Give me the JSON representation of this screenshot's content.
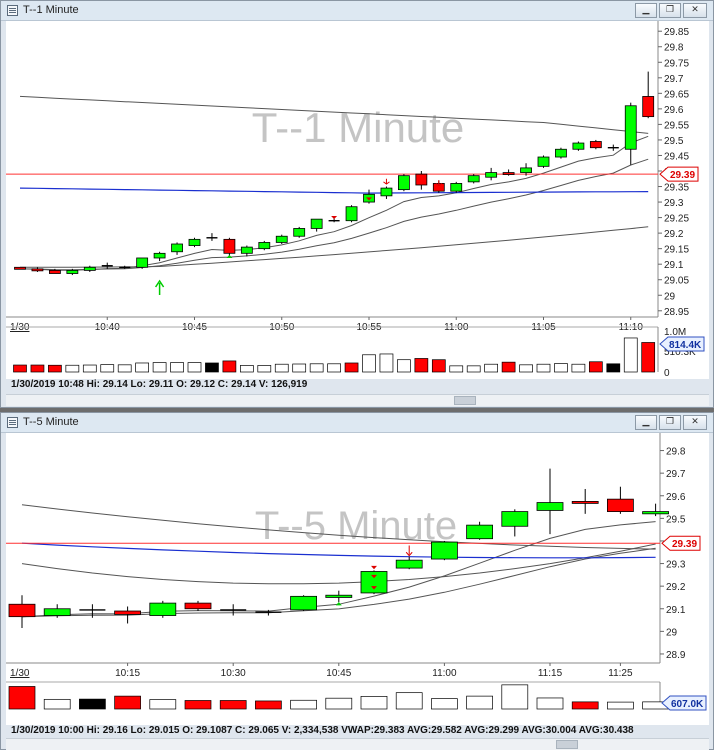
{
  "windows": [
    {
      "title": "T--1 Minute",
      "watermark": "T--1 Minute",
      "status": "1/30/2019 10:48  Hi: 29.14  Lo: 29.11  O: 29.12  C: 29.14  V: 126,919",
      "price_marker": "29.39",
      "volume_marker": "814.4K",
      "volume_ticks": [
        "1.0M",
        "510.3K",
        "0"
      ],
      "date_label": "1/30",
      "buttons": {
        "minimize": "▁",
        "restore": "❐",
        "close": "✕"
      }
    },
    {
      "title": "T--5 Minute",
      "watermark": "T--5 Minute",
      "status": "1/30/2019 10:00  Hi: 29.16  Lo: 29.015  O: 29.1087  C: 29.065  V: 2,334,538  VWAP:29.383  AVG:29.582  AVG:29.299  AVG:30.004  AVG:30.438",
      "price_marker": "29.39",
      "volume_marker": "607.0K",
      "date_label": "1/30",
      "buttons": {
        "minimize": "▁",
        "restore": "❐",
        "close": "✕"
      }
    }
  ],
  "chart_data": [
    {
      "type": "candlestick",
      "title": "T--1 Minute",
      "x_tick_labels": [
        "10:40",
        "10:45",
        "10:50",
        "10:55",
        "11:00",
        "11:05",
        "11:10"
      ],
      "y_ticks": [
        29.85,
        29.8,
        29.75,
        29.7,
        29.65,
        29.6,
        29.55,
        29.5,
        29.45,
        29.4,
        29.35,
        29.3,
        29.25,
        29.2,
        29.15,
        29.1,
        29.05,
        29.0,
        28.95
      ],
      "ylim": [
        28.93,
        29.87
      ],
      "reference_line": 29.39,
      "candles": [
        {
          "o": 29.09,
          "h": 29.09,
          "l": 29.085,
          "c": 29.085,
          "color": "red"
        },
        {
          "o": 29.085,
          "h": 29.09,
          "l": 29.075,
          "c": 29.08,
          "color": "red"
        },
        {
          "o": 29.08,
          "h": 29.085,
          "l": 29.07,
          "c": 29.07,
          "color": "red"
        },
        {
          "o": 29.07,
          "h": 29.085,
          "l": 29.065,
          "c": 29.08,
          "color": "green"
        },
        {
          "o": 29.08,
          "h": 29.095,
          "l": 29.075,
          "c": 29.09,
          "color": "green"
        },
        {
          "o": 29.09,
          "h": 29.105,
          "l": 29.085,
          "c": 29.095,
          "color": "doji"
        },
        {
          "o": 29.09,
          "h": 29.095,
          "l": 29.085,
          "c": 29.088,
          "color": "doji"
        },
        {
          "o": 29.09,
          "h": 29.12,
          "l": 29.085,
          "c": 29.12,
          "color": "green"
        },
        {
          "o": 29.12,
          "h": 29.14,
          "l": 29.11,
          "c": 29.135,
          "color": "green"
        },
        {
          "o": 29.14,
          "h": 29.17,
          "l": 29.13,
          "c": 29.165,
          "color": "green"
        },
        {
          "o": 29.16,
          "h": 29.185,
          "l": 29.155,
          "c": 29.18,
          "color": "green"
        },
        {
          "o": 29.185,
          "h": 29.2,
          "l": 29.175,
          "c": 29.185,
          "color": "doji"
        },
        {
          "o": 29.18,
          "h": 29.185,
          "l": 29.125,
          "c": 29.135,
          "color": "red"
        },
        {
          "o": 29.135,
          "h": 29.16,
          "l": 29.125,
          "c": 29.155,
          "color": "green"
        },
        {
          "o": 29.15,
          "h": 29.175,
          "l": 29.145,
          "c": 29.17,
          "color": "green"
        },
        {
          "o": 29.17,
          "h": 29.195,
          "l": 29.165,
          "c": 29.19,
          "color": "green"
        },
        {
          "o": 29.19,
          "h": 29.22,
          "l": 29.185,
          "c": 29.215,
          "color": "green"
        },
        {
          "o": 29.215,
          "h": 29.245,
          "l": 29.205,
          "c": 29.245,
          "color": "green"
        },
        {
          "o": 29.24,
          "h": 29.25,
          "l": 29.235,
          "c": 29.24,
          "color": "doji"
        },
        {
          "o": 29.24,
          "h": 29.29,
          "l": 29.235,
          "c": 29.285,
          "color": "green"
        },
        {
          "o": 29.3,
          "h": 29.34,
          "l": 29.295,
          "c": 29.325,
          "color": "green"
        },
        {
          "o": 29.32,
          "h": 29.35,
          "l": 29.31,
          "c": 29.345,
          "color": "green"
        },
        {
          "o": 29.34,
          "h": 29.39,
          "l": 29.335,
          "c": 29.385,
          "color": "green"
        },
        {
          "o": 29.39,
          "h": 29.4,
          "l": 29.34,
          "c": 29.355,
          "color": "red"
        },
        {
          "o": 29.36,
          "h": 29.37,
          "l": 29.33,
          "c": 29.335,
          "color": "red"
        },
        {
          "o": 29.335,
          "h": 29.365,
          "l": 29.33,
          "c": 29.36,
          "color": "green"
        },
        {
          "o": 29.365,
          "h": 29.39,
          "l": 29.36,
          "c": 29.385,
          "color": "green"
        },
        {
          "o": 29.38,
          "h": 29.41,
          "l": 29.37,
          "c": 29.395,
          "color": "green"
        },
        {
          "o": 29.395,
          "h": 29.405,
          "l": 29.385,
          "c": 29.39,
          "color": "red"
        },
        {
          "o": 29.395,
          "h": 29.425,
          "l": 29.385,
          "c": 29.41,
          "color": "green"
        },
        {
          "o": 29.415,
          "h": 29.45,
          "l": 29.41,
          "c": 29.445,
          "color": "green"
        },
        {
          "o": 29.445,
          "h": 29.475,
          "l": 29.44,
          "c": 29.47,
          "color": "green"
        },
        {
          "o": 29.47,
          "h": 29.495,
          "l": 29.465,
          "c": 29.49,
          "color": "green"
        },
        {
          "o": 29.495,
          "h": 29.5,
          "l": 29.47,
          "c": 29.475,
          "color": "red"
        },
        {
          "o": 29.475,
          "h": 29.485,
          "l": 29.465,
          "c": 29.475,
          "color": "doji"
        },
        {
          "o": 29.47,
          "h": 29.62,
          "l": 29.42,
          "c": 29.61,
          "color": "green"
        },
        {
          "o": 29.64,
          "h": 29.72,
          "l": 29.57,
          "c": 29.575,
          "color": "red"
        }
      ],
      "volume": {
        "ylim": [
          0,
          1000
        ],
        "units": "K",
        "bars": [
          {
            "v": 170,
            "color": "red"
          },
          {
            "v": 170,
            "color": "red"
          },
          {
            "v": 165,
            "color": "red"
          },
          {
            "v": 165,
            "color": "white"
          },
          {
            "v": 170,
            "color": "white"
          },
          {
            "v": 180,
            "color": "white"
          },
          {
            "v": 175,
            "color": "white"
          },
          {
            "v": 220,
            "color": "white"
          },
          {
            "v": 230,
            "color": "white"
          },
          {
            "v": 230,
            "color": "white"
          },
          {
            "v": 230,
            "color": "white"
          },
          {
            "v": 220,
            "color": "black"
          },
          {
            "v": 270,
            "color": "red"
          },
          {
            "v": 160,
            "color": "white"
          },
          {
            "v": 160,
            "color": "white"
          },
          {
            "v": 190,
            "color": "white"
          },
          {
            "v": 195,
            "color": "white"
          },
          {
            "v": 200,
            "color": "white"
          },
          {
            "v": 200,
            "color": "white"
          },
          {
            "v": 220,
            "color": "red"
          },
          {
            "v": 420,
            "color": "white"
          },
          {
            "v": 440,
            "color": "white"
          },
          {
            "v": 300,
            "color": "white"
          },
          {
            "v": 330,
            "color": "red"
          },
          {
            "v": 300,
            "color": "red"
          },
          {
            "v": 150,
            "color": "white"
          },
          {
            "v": 150,
            "color": "white"
          },
          {
            "v": 190,
            "color": "white"
          },
          {
            "v": 240,
            "color": "red"
          },
          {
            "v": 175,
            "color": "white"
          },
          {
            "v": 190,
            "color": "white"
          },
          {
            "v": 205,
            "color": "white"
          },
          {
            "v": 190,
            "color": "white"
          },
          {
            "v": 250,
            "color": "red"
          },
          {
            "v": 200,
            "color": "black"
          },
          {
            "v": 830,
            "color": "white"
          },
          {
            "v": 720,
            "color": "red"
          }
        ]
      }
    },
    {
      "type": "candlestick",
      "title": "T--5 Minute",
      "x_tick_labels": [
        "10:15",
        "10:30",
        "10:45",
        "11:00",
        "11:15",
        "11:25"
      ],
      "y_ticks": [
        29.8,
        29.7,
        29.6,
        29.5,
        29.4,
        29.3,
        29.2,
        29.1,
        29.0,
        28.9
      ],
      "ylim": [
        28.86,
        29.86
      ],
      "reference_line": 29.39,
      "candles": [
        {
          "o": 29.12,
          "h": 29.16,
          "l": 29.015,
          "c": 29.065,
          "color": "red"
        },
        {
          "o": 29.07,
          "h": 29.12,
          "l": 29.06,
          "c": 29.1,
          "color": "green"
        },
        {
          "o": 29.095,
          "h": 29.12,
          "l": 29.06,
          "c": 29.09,
          "color": "doji"
        },
        {
          "o": 29.09,
          "h": 29.11,
          "l": 29.035,
          "c": 29.075,
          "color": "red"
        },
        {
          "o": 29.07,
          "h": 29.135,
          "l": 29.06,
          "c": 29.125,
          "color": "green"
        },
        {
          "o": 29.125,
          "h": 29.135,
          "l": 29.09,
          "c": 29.1,
          "color": "red"
        },
        {
          "o": 29.095,
          "h": 29.12,
          "l": 29.07,
          "c": 29.09,
          "color": "doji"
        },
        {
          "o": 29.085,
          "h": 29.095,
          "l": 29.07,
          "c": 29.085,
          "color": "doji"
        },
        {
          "o": 29.095,
          "h": 29.16,
          "l": 29.09,
          "c": 29.155,
          "color": "green"
        },
        {
          "o": 29.15,
          "h": 29.18,
          "l": 29.13,
          "c": 29.16,
          "color": "green"
        },
        {
          "o": 29.17,
          "h": 29.27,
          "l": 29.165,
          "c": 29.265,
          "color": "green"
        },
        {
          "o": 29.28,
          "h": 29.33,
          "l": 29.275,
          "c": 29.315,
          "color": "green"
        },
        {
          "o": 29.32,
          "h": 29.4,
          "l": 29.315,
          "c": 29.395,
          "color": "green"
        },
        {
          "o": 29.41,
          "h": 29.485,
          "l": 29.405,
          "c": 29.47,
          "color": "green"
        },
        {
          "o": 29.465,
          "h": 29.54,
          "l": 29.42,
          "c": 29.53,
          "color": "green"
        },
        {
          "o": 29.535,
          "h": 29.72,
          "l": 29.43,
          "c": 29.57,
          "color": "green"
        },
        {
          "o": 29.575,
          "h": 29.63,
          "l": 29.52,
          "c": 29.57,
          "color": "red"
        },
        {
          "o": 29.585,
          "h": 29.64,
          "l": 29.52,
          "c": 29.53,
          "color": "red"
        },
        {
          "o": 29.52,
          "h": 29.565,
          "l": 29.51,
          "c": 29.53,
          "color": "green"
        }
      ],
      "volume": {
        "ylim": [
          0,
          1000
        ],
        "units": "K",
        "bars": [
          {
            "v": 980,
            "color": "red"
          },
          {
            "v": 420,
            "color": "white"
          },
          {
            "v": 430,
            "color": "black"
          },
          {
            "v": 560,
            "color": "red"
          },
          {
            "v": 410,
            "color": "white"
          },
          {
            "v": 370,
            "color": "red"
          },
          {
            "v": 370,
            "color": "red"
          },
          {
            "v": 350,
            "color": "red"
          },
          {
            "v": 380,
            "color": "white"
          },
          {
            "v": 470,
            "color": "white"
          },
          {
            "v": 550,
            "color": "white"
          },
          {
            "v": 710,
            "color": "white"
          },
          {
            "v": 450,
            "color": "white"
          },
          {
            "v": 560,
            "color": "white"
          },
          {
            "v": 1050,
            "color": "white"
          },
          {
            "v": 480,
            "color": "white"
          },
          {
            "v": 310,
            "color": "red"
          },
          {
            "v": 300,
            "color": "white"
          },
          {
            "v": 310,
            "color": "white"
          }
        ]
      }
    }
  ]
}
